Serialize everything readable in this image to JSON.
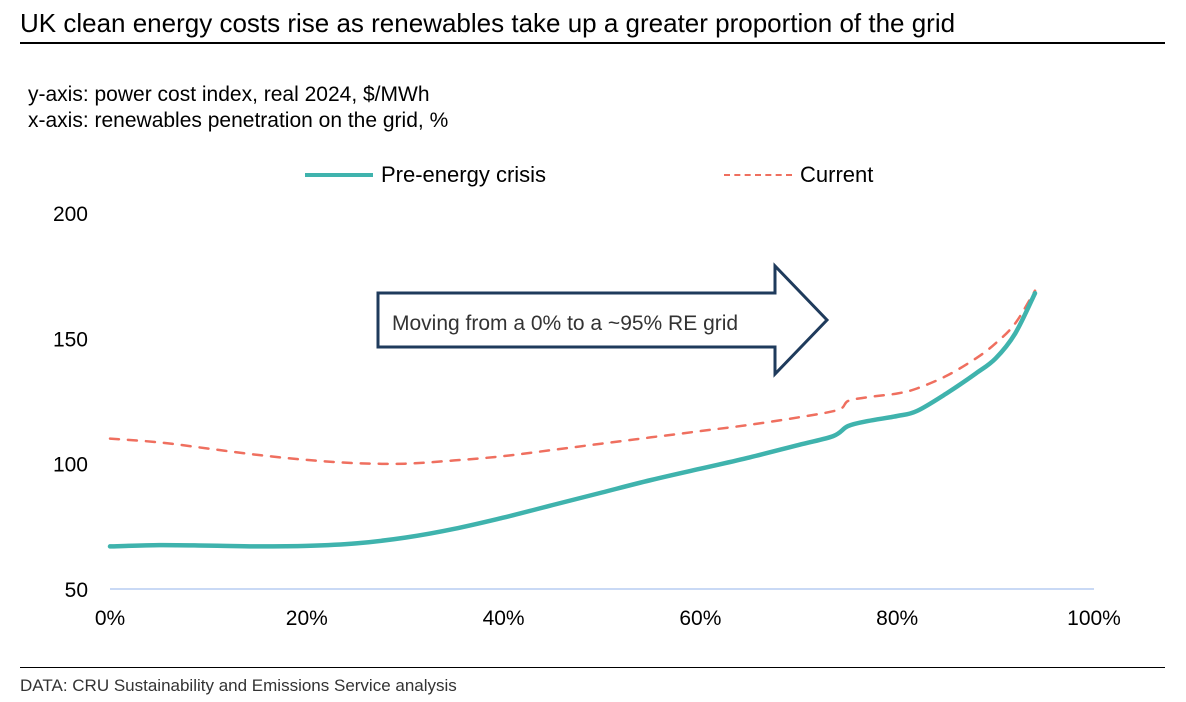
{
  "header": {
    "title": "UK clean energy costs rise as renewables take up a greater proportion of the grid"
  },
  "notes": {
    "y_axis": "y-axis: power cost index, real 2024, $/MWh",
    "x_axis": "x-axis: renewables penetration on the grid, %"
  },
  "legend": {
    "pre_label": "Pre-energy crisis",
    "current_label": "Current"
  },
  "annotation": {
    "text": "Moving from a 0% to a ~95% RE grid"
  },
  "footer": {
    "source": "DATA: CRU Sustainability and Emissions Service analysis"
  },
  "colors": {
    "pre": "#3fb3ad",
    "current": "#ef6f5f",
    "baseline": "#c9d9f5",
    "arrow_stroke": "#1f3b5c"
  },
  "chart_data": {
    "type": "line",
    "title": "UK clean energy costs rise as renewables take up a greater proportion of the grid",
    "xlabel": "renewables penetration on the grid, %",
    "ylabel": "power cost index, real 2024, $/MWh",
    "xlim": [
      0,
      100
    ],
    "ylim": [
      50,
      200
    ],
    "x_ticks": [
      0,
      20,
      40,
      60,
      80,
      100
    ],
    "x_tick_labels": [
      "0%",
      "20%",
      "40%",
      "60%",
      "80%",
      "100%"
    ],
    "y_ticks": [
      50,
      100,
      150,
      200
    ],
    "y_tick_labels": [
      "50",
      "100",
      "150",
      "200"
    ],
    "grid": false,
    "legend_position": "top",
    "series": [
      {
        "name": "Pre-energy crisis",
        "style": "solid",
        "x": [
          0,
          5,
          10,
          15,
          20,
          25,
          30,
          35,
          40,
          45,
          50,
          55,
          60,
          65,
          70,
          73.5,
          75,
          77,
          80,
          82,
          85,
          88,
          90,
          92,
          94
        ],
        "y": [
          67,
          67.5,
          67.3,
          67,
          67.2,
          68.2,
          70.5,
          74,
          78.5,
          83.5,
          88.5,
          93.5,
          98,
          102.5,
          107.5,
          111,
          115,
          117,
          119,
          121,
          128,
          136,
          142,
          152,
          168
        ]
      },
      {
        "name": "Current",
        "style": "dashed",
        "x": [
          0,
          5,
          10,
          15,
          20,
          25,
          30,
          35,
          40,
          45,
          50,
          55,
          60,
          65,
          70,
          74,
          75,
          77,
          80,
          82,
          85,
          88,
          90,
          92,
          94
        ],
        "y": [
          110,
          108.5,
          106,
          103.5,
          101.5,
          100.2,
          100,
          101.3,
          103,
          105.5,
          108,
          110.5,
          113,
          115.5,
          118.5,
          121.5,
          125,
          126.5,
          128,
          130,
          135,
          142,
          148,
          156,
          169
        ]
      }
    ]
  }
}
